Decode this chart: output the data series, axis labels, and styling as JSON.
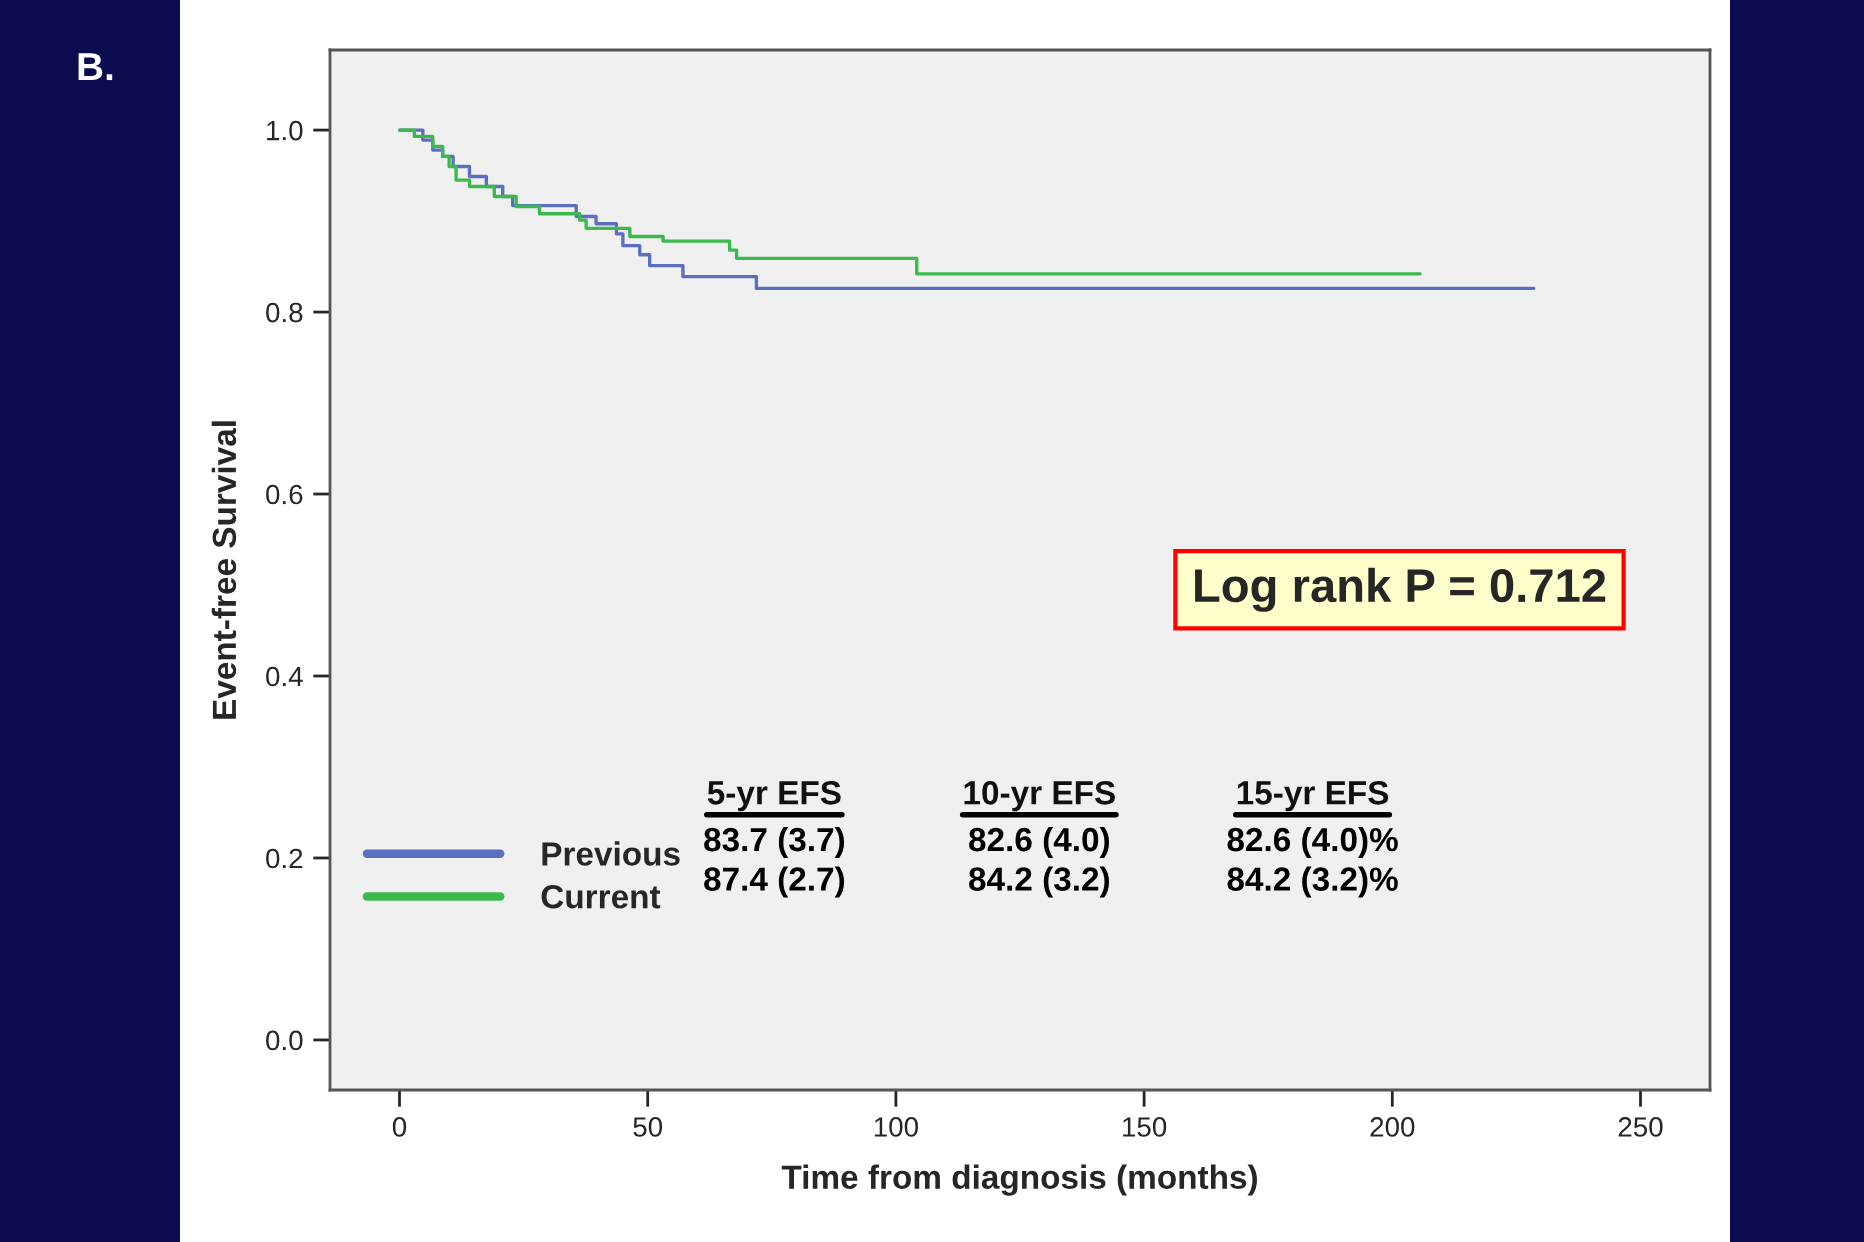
{
  "chart_data": {
    "type": "step",
    "xlabel": "Time from diagnosis (months)",
    "ylabel": "Event-free Survival",
    "xlim": [
      -14,
      264
    ],
    "ylim": [
      -0.055,
      1.088
    ],
    "xticks": [
      0,
      50,
      100,
      150,
      200,
      250
    ],
    "yticks": [
      {
        "value": 0,
        "label": "0.0"
      },
      {
        "value": 0.2,
        "label": "0.2"
      },
      {
        "value": 0.4,
        "label": "0.4"
      },
      {
        "value": 0.6,
        "label": "0.6"
      },
      {
        "value": 0.8,
        "label": "0.8"
      },
      {
        "value": 1.0,
        "label": "1.0"
      }
    ],
    "grid": false,
    "legend": "left",
    "series": [
      {
        "name": "Previous",
        "color": "#5b6fc0",
        "x": [
          0,
          4.7,
          6.7,
          8.7,
          10.8,
          14.1,
          17.5,
          20.8,
          22.8,
          35.6,
          39.6,
          43.7,
          45,
          48.4,
          50.4,
          57.1,
          71.9,
          228.5
        ],
        "values": [
          1.0,
          0.989,
          0.978,
          0.971,
          0.96,
          0.949,
          0.938,
          0.927,
          0.917,
          0.905,
          0.897,
          0.886,
          0.873,
          0.863,
          0.851,
          0.839,
          0.826,
          0.826
        ]
      },
      {
        "name": "Current",
        "color": "#3cb94c",
        "x": [
          0,
          3,
          6.7,
          8.7,
          10,
          11.4,
          14.1,
          19.1,
          23.5,
          28.2,
          36.3,
          37.6,
          46.4,
          53.1,
          66.5,
          67.9,
          104.2,
          205.6
        ],
        "values": [
          1.0,
          0.993,
          0.982,
          0.971,
          0.96,
          0.945,
          0.938,
          0.927,
          0.916,
          0.908,
          0.901,
          0.892,
          0.883,
          0.878,
          0.868,
          0.859,
          0.842,
          0.842
        ]
      }
    ],
    "annotations": [
      "B.",
      "Log rank P = 0.712",
      "5-yr EFS",
      "10-yr EFS",
      "15-yr EFS",
      "83.7 (3.7)",
      "82.6 (4.0)",
      "82.6 (4.0)%",
      "87.4 (2.7)",
      "84.2 (3.2)",
      "84.2 (3.2)%"
    ]
  }
}
